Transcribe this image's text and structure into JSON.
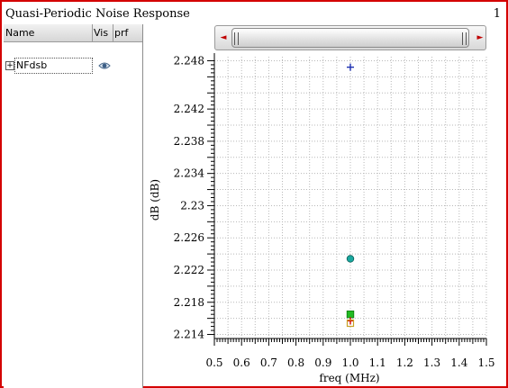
{
  "window": {
    "title": "Quasi-Periodic Noise Response",
    "page_number": "1"
  },
  "trace_panel": {
    "columns": [
      "Name",
      "Vis",
      "prf"
    ],
    "rows": [
      {
        "expander": "+",
        "name": "NFdsb",
        "visible_icon": "eye-icon"
      }
    ]
  },
  "scrollbar": {
    "left_arrow": "◄",
    "right_arrow": "►"
  },
  "colors": {
    "frame": "#d40000",
    "series_plus": "#1c2fb0",
    "series_circle": "#1aa9a0",
    "series_square": "#22bb22",
    "series_box": "#c9a227",
    "series_plus_red": "#d40000"
  },
  "chart_data": {
    "type": "scatter",
    "xlabel": "freq (MHz)",
    "ylabel": "dB (dB)",
    "xlim": [
      0.5,
      1.5
    ],
    "ylim": [
      2.2135,
      2.2485
    ],
    "x_ticks": [
      "0.5",
      "0.6",
      "0.7",
      "0.8",
      "0.9",
      "1.0",
      "1.1",
      "1.2",
      "1.3",
      "1.4",
      "1.5"
    ],
    "y_ticks": [
      "2.214",
      "2.218",
      "2.222",
      "2.226",
      "2.23",
      "2.234",
      "2.238",
      "2.242",
      "2.248"
    ],
    "grid": true,
    "points": [
      {
        "x": 1.0,
        "y": 2.2472,
        "marker": "plus",
        "color": "#1c2fb0"
      },
      {
        "x": 1.0,
        "y": 2.2234,
        "marker": "circle",
        "color": "#1aa9a0"
      },
      {
        "x": 1.0,
        "y": 2.2165,
        "marker": "square",
        "color": "#22bb22"
      },
      {
        "x": 1.0,
        "y": 2.2157,
        "marker": "plus",
        "color": "#d40000"
      },
      {
        "x": 1.0,
        "y": 2.2154,
        "marker": "box",
        "color": "#c9a227"
      }
    ]
  }
}
